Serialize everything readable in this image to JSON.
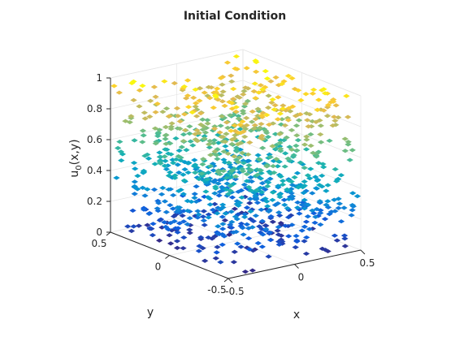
{
  "chart_data": {
    "type": "scatter",
    "title": "Initial Condition",
    "xlabel": "x",
    "ylabel": "y",
    "zlabel": {
      "base": "u",
      "subscript": "0",
      "args": "(x,y)"
    },
    "xlim": [
      -0.5,
      0.5
    ],
    "ylim": [
      -0.5,
      0.5
    ],
    "zlim": [
      0,
      1
    ],
    "x_ticks": [
      "-0.5",
      "0",
      "0.5"
    ],
    "y_ticks": [
      "-0.5",
      "0",
      "0.5"
    ],
    "z_ticks": [
      "0",
      "0.2",
      "0.4",
      "0.6",
      "0.8",
      "1"
    ],
    "grid": true,
    "view": "3d isometric",
    "colormap": "parula",
    "marker": "diamond",
    "point_count_approx": 1000,
    "distribution": "random (x, y) in [-0.5, 0.5]^2 with u0 spread roughly uniformly over [0, 1]"
  }
}
